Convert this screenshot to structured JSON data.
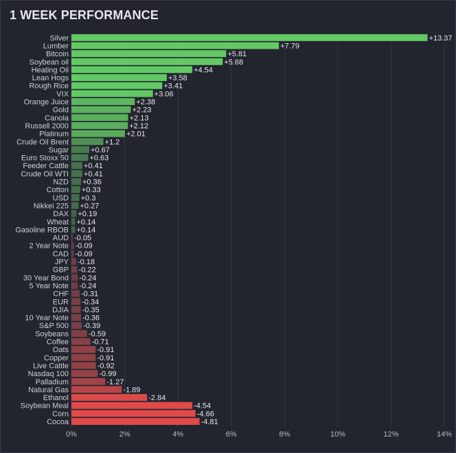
{
  "chart_data": {
    "type": "bar",
    "orientation": "horizontal",
    "title": "1 WEEK PERFORMANCE",
    "categories": [
      "Silver",
      "Lumber",
      "Bitcoin",
      "Soybean oil",
      "Heating Oil",
      "Lean Hogs",
      "Rough Rice",
      "VIX",
      "Orange Juice",
      "Gold",
      "Canola",
      "Russell 2000",
      "Platinum",
      "Crude Oil Brent",
      "Sugar",
      "Euro Stoxx 50",
      "Feeder Cattle",
      "Crude Oil WTI",
      "NZD",
      "Cotton",
      "USD",
      "Nikkei 225",
      "DAX",
      "Wheat",
      "Gasoline RBOB",
      "AUD",
      "2 Year Note",
      "CAD",
      "JPY",
      "GBP",
      "30 Year Bond",
      "5 Year Note",
      "CHF",
      "EUR",
      "DJIA",
      "10 Year Note",
      "S&P 500",
      "Soybeans",
      "Coffee",
      "Oats",
      "Copper",
      "Live Cattle",
      "Nasdaq 100",
      "Palladium",
      "Natural Gas",
      "Ethanol",
      "Soybean Meal",
      "Corn",
      "Cocoa"
    ],
    "values": [
      13.37,
      7.79,
      5.81,
      5.68,
      4.54,
      3.58,
      3.41,
      3.06,
      2.38,
      2.23,
      2.13,
      2.12,
      2.01,
      1.2,
      0.67,
      0.63,
      0.41,
      0.41,
      0.36,
      0.33,
      0.3,
      0.27,
      0.19,
      0.14,
      0.14,
      -0.05,
      -0.09,
      -0.09,
      -0.18,
      -0.22,
      -0.24,
      -0.24,
      -0.31,
      -0.34,
      -0.35,
      -0.36,
      -0.39,
      -0.59,
      -0.71,
      -0.91,
      -0.91,
      -0.92,
      -0.99,
      -1.27,
      -1.89,
      -2.84,
      -4.54,
      -4.66,
      -4.81
    ],
    "value_labels": [
      "+13.37",
      "+7.79",
      "+5.81",
      "+5.68",
      "+4.54",
      "+3.58",
      "+3.41",
      "+3.06",
      "+2.38",
      "+2.23",
      "+2.13",
      "+2.12",
      "+2.01",
      "+1.2",
      "+0.67",
      "+0.63",
      "+0.41",
      "+0.41",
      "+0.36",
      "+0.33",
      "+0.3",
      "+0.27",
      "+0.19",
      "+0.14",
      "+0.14",
      "-0.05",
      "-0.09",
      "-0.09",
      "-0.18",
      "-0.22",
      "-0.24",
      "-0.24",
      "-0.31",
      "-0.34",
      "-0.35",
      "-0.36",
      "-0.39",
      "-0.59",
      "-0.71",
      "-0.91",
      "-0.91",
      "-0.92",
      "-0.99",
      "-1.27",
      "-1.89",
      "-2.84",
      "-4.54",
      "-4.66",
      "-4.81"
    ],
    "xlim": [
      0,
      14
    ],
    "x_ticks": [
      0,
      2,
      4,
      6,
      8,
      10,
      12,
      14
    ],
    "x_tick_labels": [
      "0%",
      "2%",
      "4%",
      "6%",
      "8%",
      "10%",
      "12%",
      "14%"
    ],
    "grid": true,
    "colors": {
      "positive": "#63c964",
      "negative": "#e04b4a",
      "positive_dim": "#3d5a46",
      "negative_dim": "#5e3c45",
      "grid": "#363945"
    }
  }
}
